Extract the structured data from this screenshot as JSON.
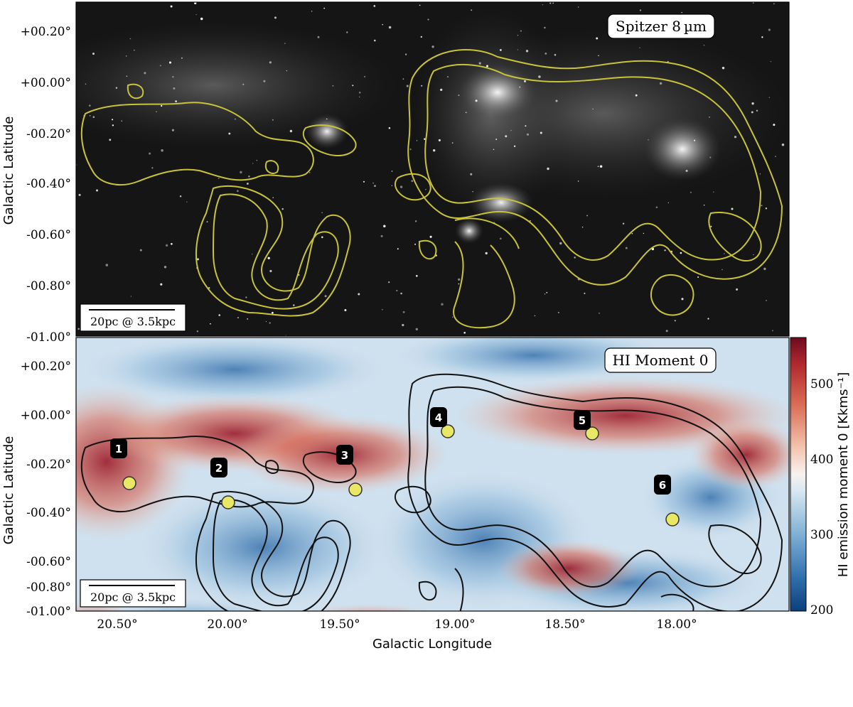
{
  "top_panel": {
    "label": "Spitzer 8 µm",
    "ylabel": "Galactic Latitude",
    "yticks": [
      "+00.20°",
      "+00.00°",
      "-00.20°",
      "-00.40°",
      "-00.60°",
      "-00.80°",
      "-01.00°"
    ],
    "scalebar": "20pc @ 3.5kpc",
    "background": "#111111",
    "contour_color": "#c8c33a"
  },
  "bottom_panel": {
    "label": "HI Moment 0",
    "ylabel": "Galactic Latitude",
    "xlabel": "Galactic Longitude",
    "yticks": [
      "+00.20°",
      "+00.00°",
      "-00.20°",
      "-00.40°",
      "-00.60°",
      "-00.80°",
      "-01.00°"
    ],
    "xticks": [
      "20.50°",
      "20.00°",
      "19.50°",
      "19.00°",
      "18.50°",
      "18.00°"
    ],
    "scalebar": "20pc @ 3.5kpc",
    "contour_color": "#111111",
    "marker_color": "#e8e866",
    "markers": [
      "1",
      "2",
      "3",
      "4",
      "5",
      "6"
    ]
  },
  "colorbar": {
    "label": "HI emission moment 0 [Kkms⁻¹]",
    "ticks": [
      "500",
      "400",
      "300",
      "200"
    ],
    "colors": [
      "#0b3f7a",
      "#2f6fad",
      "#7fb0d6",
      "#d9e8f2",
      "#f7f2ef",
      "#f3c3ad",
      "#d96a53",
      "#b22a2f",
      "#6e0a1e"
    ]
  }
}
